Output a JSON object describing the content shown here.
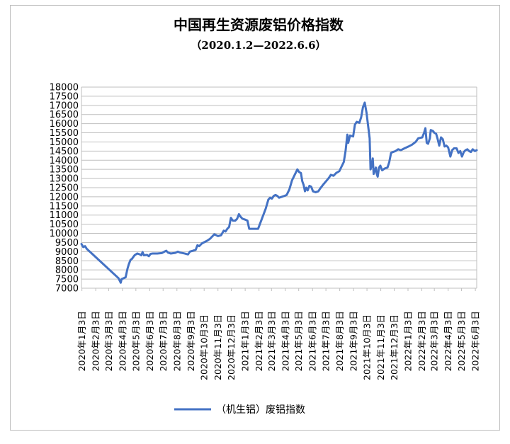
{
  "chart_data": {
    "type": "line",
    "title": "中国再生资源废铝价格指数",
    "subtitle": "（2020.1.2—2022.6.6）",
    "xlabel": "",
    "ylabel": "",
    "ylim": [
      7000,
      18000
    ],
    "ytick_step": 500,
    "yticks": [
      "7000",
      "7500",
      "8000",
      "8500",
      "9000",
      "9500",
      "10000",
      "10500",
      "11000",
      "11500",
      "12000",
      "12500",
      "13000",
      "13500",
      "14000",
      "14500",
      "15000",
      "15500",
      "16000",
      "16500",
      "17000",
      "17500",
      "18000"
    ],
    "xlim": [
      "2020-01-02",
      "2022-06-06"
    ],
    "x_tick_labels": [
      "2020年1月3日",
      "2020年2月3日",
      "2020年3月3日",
      "2020年4月3日",
      "2020年5月3日",
      "2020年6月3日",
      "2020年7月3日",
      "2020年8月3日",
      "2020年9月3日",
      "2020年10月3日",
      "2020年11月3日",
      "2020年12月3日",
      "2021年1月3日",
      "2021年2月3日",
      "2021年3月3日",
      "2021年4月3日",
      "2021年5月3日",
      "2021年6月3日",
      "2021年7月3日",
      "2021年8月3日",
      "2021年9月3日",
      "2021年10月3日",
      "2021年11月3日",
      "2021年12月3日",
      "2022年1月3日",
      "2022年2月3日",
      "2022年3月3日",
      "2022年4月3日",
      "2022年5月3日",
      "2022年6月3日"
    ],
    "x_tick_dates": [
      "2020-01-03",
      "2020-02-03",
      "2020-03-03",
      "2020-04-03",
      "2020-05-03",
      "2020-06-03",
      "2020-07-03",
      "2020-08-03",
      "2020-09-03",
      "2020-10-03",
      "2020-11-03",
      "2020-12-03",
      "2021-01-03",
      "2021-02-03",
      "2021-03-03",
      "2021-04-03",
      "2021-05-03",
      "2021-06-03",
      "2021-07-03",
      "2021-08-03",
      "2021-09-03",
      "2021-10-03",
      "2021-11-03",
      "2021-12-03",
      "2022-01-03",
      "2022-02-03",
      "2022-03-03",
      "2022-04-03",
      "2022-05-03",
      "2022-06-03"
    ],
    "grid": true,
    "legend_position": "bottom",
    "series": [
      {
        "name": "（机生铝）废铝指数",
        "color": "#4472c4",
        "points": [
          [
            "2020-01-02",
            9420
          ],
          [
            "2020-01-06",
            9250
          ],
          [
            "2020-01-10",
            9300
          ],
          [
            "2020-01-14",
            9150
          ],
          [
            "2020-03-25",
            7550
          ],
          [
            "2020-03-30",
            7300
          ],
          [
            "2020-04-01",
            7500
          ],
          [
            "2020-04-06",
            7550
          ],
          [
            "2020-04-10",
            7600
          ],
          [
            "2020-04-14",
            8050
          ],
          [
            "2020-04-17",
            8300
          ],
          [
            "2020-04-21",
            8550
          ],
          [
            "2020-04-24",
            8600
          ],
          [
            "2020-04-30",
            8800
          ],
          [
            "2020-05-06",
            8900
          ],
          [
            "2020-05-12",
            8850
          ],
          [
            "2020-05-15",
            8800
          ],
          [
            "2020-05-18",
            8980
          ],
          [
            "2020-05-21",
            8800
          ],
          [
            "2020-05-28",
            8820
          ],
          [
            "2020-06-01",
            8750
          ],
          [
            "2020-06-05",
            8880
          ],
          [
            "2020-06-10",
            8900
          ],
          [
            "2020-06-20",
            8900
          ],
          [
            "2020-06-30",
            8920
          ],
          [
            "2020-07-06",
            9000
          ],
          [
            "2020-07-10",
            9050
          ],
          [
            "2020-07-14",
            8950
          ],
          [
            "2020-07-20",
            8900
          ],
          [
            "2020-07-30",
            8930
          ],
          [
            "2020-08-05",
            9000
          ],
          [
            "2020-08-10",
            8950
          ],
          [
            "2020-08-20",
            8900
          ],
          [
            "2020-08-28",
            8850
          ],
          [
            "2020-09-01",
            9000
          ],
          [
            "2020-09-08",
            9050
          ],
          [
            "2020-09-14",
            9100
          ],
          [
            "2020-09-18",
            9350
          ],
          [
            "2020-09-22",
            9300
          ],
          [
            "2020-09-28",
            9450
          ],
          [
            "2020-10-10",
            9600
          ],
          [
            "2020-10-16",
            9700
          ],
          [
            "2020-10-20",
            9800
          ],
          [
            "2020-10-26",
            9950
          ],
          [
            "2020-11-03",
            9850
          ],
          [
            "2020-11-10",
            9900
          ],
          [
            "2020-11-16",
            10150
          ],
          [
            "2020-11-20",
            10100
          ],
          [
            "2020-11-24",
            10250
          ],
          [
            "2020-11-28",
            10350
          ],
          [
            "2020-12-02",
            10850
          ],
          [
            "2020-12-06",
            10700
          ],
          [
            "2020-12-12",
            10700
          ],
          [
            "2020-12-16",
            10800
          ],
          [
            "2020-12-20",
            11050
          ],
          [
            "2020-12-24",
            10900
          ],
          [
            "2020-12-28",
            10800
          ],
          [
            "2021-01-03",
            10750
          ],
          [
            "2021-01-08",
            10700
          ],
          [
            "2021-01-12",
            10250
          ],
          [
            "2021-01-20",
            10250
          ],
          [
            "2021-01-28",
            10250
          ],
          [
            "2021-02-01",
            10250
          ],
          [
            "2021-02-18",
            11350
          ],
          [
            "2021-02-24",
            11850
          ],
          [
            "2021-02-28",
            11950
          ],
          [
            "2021-03-04",
            11900
          ],
          [
            "2021-03-08",
            12050
          ],
          [
            "2021-03-12",
            12100
          ],
          [
            "2021-03-16",
            12050
          ],
          [
            "2021-03-20",
            11950
          ],
          [
            "2021-03-26",
            12000
          ],
          [
            "2021-04-01",
            12050
          ],
          [
            "2021-04-06",
            12100
          ],
          [
            "2021-04-12",
            12400
          ],
          [
            "2021-04-18",
            12900
          ],
          [
            "2021-04-24",
            13200
          ],
          [
            "2021-04-30",
            13500
          ],
          [
            "2021-05-04",
            13350
          ],
          [
            "2021-05-08",
            13300
          ],
          [
            "2021-05-11",
            12850
          ],
          [
            "2021-05-14",
            12650
          ],
          [
            "2021-05-17",
            12300
          ],
          [
            "2021-05-20",
            12500
          ],
          [
            "2021-05-23",
            12350
          ],
          [
            "2021-05-27",
            12600
          ],
          [
            "2021-05-31",
            12550
          ],
          [
            "2021-06-04",
            12300
          ],
          [
            "2021-06-10",
            12250
          ],
          [
            "2021-06-16",
            12300
          ],
          [
            "2021-06-20",
            12450
          ],
          [
            "2021-06-28",
            12700
          ],
          [
            "2021-07-05",
            12900
          ],
          [
            "2021-07-10",
            13050
          ],
          [
            "2021-07-14",
            13200
          ],
          [
            "2021-07-20",
            13150
          ],
          [
            "2021-07-26",
            13300
          ],
          [
            "2021-08-02",
            13400
          ],
          [
            "2021-08-08",
            13700
          ],
          [
            "2021-08-12",
            13900
          ],
          [
            "2021-08-16",
            14500
          ],
          [
            "2021-08-20",
            15400
          ],
          [
            "2021-08-22",
            14950
          ],
          [
            "2021-08-26",
            15350
          ],
          [
            "2021-09-02",
            15300
          ],
          [
            "2021-09-06",
            15950
          ],
          [
            "2021-09-10",
            16100
          ],
          [
            "2021-09-16",
            16050
          ],
          [
            "2021-09-20",
            16350
          ],
          [
            "2021-09-24",
            16900
          ],
          [
            "2021-09-28",
            17150
          ],
          [
            "2021-10-02",
            16600
          ],
          [
            "2021-10-06",
            15800
          ],
          [
            "2021-10-09",
            15200
          ],
          [
            "2021-10-11",
            13500
          ],
          [
            "2021-10-14",
            13750
          ],
          [
            "2021-10-16",
            14100
          ],
          [
            "2021-10-18",
            13250
          ],
          [
            "2021-10-20",
            13400
          ],
          [
            "2021-10-23",
            13600
          ],
          [
            "2021-10-25",
            13250
          ],
          [
            "2021-10-27",
            13100
          ],
          [
            "2021-10-30",
            13600
          ],
          [
            "2021-11-02",
            13700
          ],
          [
            "2021-11-06",
            13450
          ],
          [
            "2021-11-12",
            13550
          ],
          [
            "2021-11-18",
            13600
          ],
          [
            "2021-11-22",
            13900
          ],
          [
            "2021-11-26",
            14400
          ],
          [
            "2021-11-30",
            14450
          ],
          [
            "2021-12-06",
            14500
          ],
          [
            "2021-12-12",
            14600
          ],
          [
            "2021-12-18",
            14550
          ],
          [
            "2021-12-26",
            14650
          ],
          [
            "2022-01-04",
            14750
          ],
          [
            "2022-01-12",
            14850
          ],
          [
            "2022-01-20",
            15000
          ],
          [
            "2022-01-26",
            15200
          ],
          [
            "2022-02-04",
            15250
          ],
          [
            "2022-02-08",
            15500
          ],
          [
            "2022-02-11",
            15750
          ],
          [
            "2022-02-14",
            14950
          ],
          [
            "2022-02-17",
            14900
          ],
          [
            "2022-02-21",
            15200
          ],
          [
            "2022-02-23",
            15650
          ],
          [
            "2022-02-28",
            15600
          ],
          [
            "2022-03-03",
            15500
          ],
          [
            "2022-03-07",
            15450
          ],
          [
            "2022-03-10",
            15200
          ],
          [
            "2022-03-14",
            14800
          ],
          [
            "2022-03-18",
            15250
          ],
          [
            "2022-03-22",
            15150
          ],
          [
            "2022-03-26",
            14750
          ],
          [
            "2022-03-30",
            14800
          ],
          [
            "2022-04-03",
            14700
          ],
          [
            "2022-04-08",
            14200
          ],
          [
            "2022-04-12",
            14550
          ],
          [
            "2022-04-16",
            14650
          ],
          [
            "2022-04-22",
            14650
          ],
          [
            "2022-04-26",
            14400
          ],
          [
            "2022-04-30",
            14500
          ],
          [
            "2022-05-04",
            14200
          ],
          [
            "2022-05-08",
            14450
          ],
          [
            "2022-05-12",
            14550
          ],
          [
            "2022-05-16",
            14600
          ],
          [
            "2022-05-20",
            14500
          ],
          [
            "2022-05-24",
            14450
          ],
          [
            "2022-05-28",
            14600
          ],
          [
            "2022-06-02",
            14500
          ],
          [
            "2022-06-06",
            14550
          ]
        ]
      }
    ]
  }
}
